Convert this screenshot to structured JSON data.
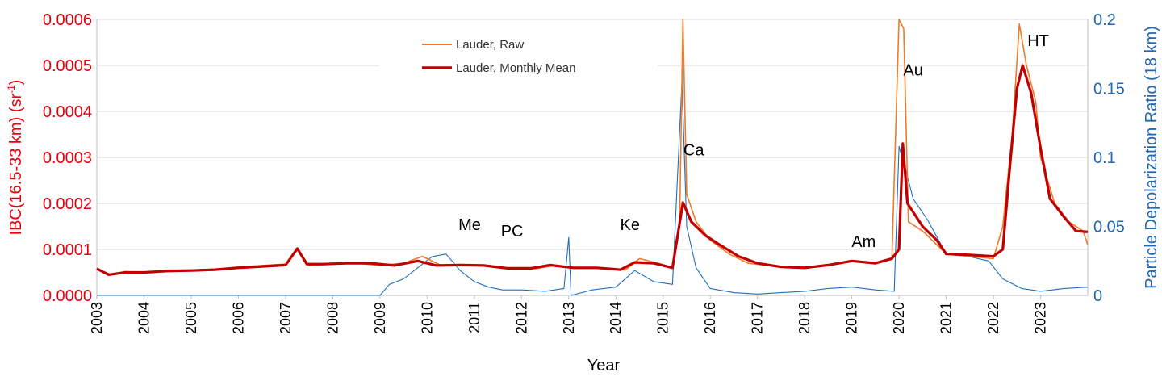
{
  "chart_data": {
    "type": "line",
    "xlabel": "Year",
    "ylabel_left": "IBC(16.5-33 km) (sr",
    "ylabel_left_sup": "-1",
    "ylabel_left_end": ")",
    "ylabel_right": "Particle Depolarization Ratio (18 km)",
    "xlim": [
      2003,
      2024
    ],
    "ylim_left": [
      0,
      0.0006
    ],
    "ylim_right": [
      0,
      0.2
    ],
    "x_tick_labels": [
      "2003",
      "2004",
      "2005",
      "2006",
      "2007",
      "2008",
      "2009",
      "2010",
      "2011",
      "2012",
      "2013",
      "2014",
      "2015",
      "2016",
      "2017",
      "2018",
      "2019",
      "2020",
      "2021",
      "2022",
      "2023"
    ],
    "y_left_tick_labels": [
      "0.0000",
      "0.0001",
      "0.0002",
      "0.0003",
      "0.0004",
      "0.0005",
      "0.0006"
    ],
    "y_right_tick_labels": [
      "0",
      "0.05",
      "0.1",
      "0.15",
      "0.2"
    ],
    "grid": "horizontal",
    "legend_position": "top-center",
    "colors": {
      "raw": "#f07a2a",
      "mean": "#c00000",
      "depol": "#1f6fc1",
      "left_axis": "#e8000d",
      "right_axis": "#1f66b3"
    },
    "annotations": [
      {
        "text": "Me",
        "x": 2010.9,
        "y": 0.000142
      },
      {
        "text": "PC",
        "x": 2011.8,
        "y": 0.000128
      },
      {
        "text": "Ke",
        "x": 2014.3,
        "y": 0.000142
      },
      {
        "text": "Ca",
        "x": 2015.65,
        "y": 0.000304
      },
      {
        "text": "Am",
        "x": 2019.25,
        "y": 0.000105
      },
      {
        "text": "Au",
        "x": 2020.3,
        "y": 0.000478
      },
      {
        "text": "HT",
        "x": 2022.95,
        "y": 0.000542
      }
    ],
    "series": [
      {
        "name": "Lauder, Raw",
        "axis": "left",
        "points": [
          [
            2003.0,
            5.8e-05
          ],
          [
            2003.3,
            4.5e-05
          ],
          [
            2003.6,
            5.2e-05
          ],
          [
            2004.0,
            5e-05
          ],
          [
            2004.5,
            5.5e-05
          ],
          [
            2005.0,
            5.5e-05
          ],
          [
            2005.5,
            5.7e-05
          ],
          [
            2006.0,
            6.2e-05
          ],
          [
            2006.5,
            6.5e-05
          ],
          [
            2007.0,
            6.8e-05
          ],
          [
            2007.25,
            0.000102
          ],
          [
            2007.5,
            6.5e-05
          ],
          [
            2008.0,
            6.8e-05
          ],
          [
            2008.5,
            7e-05
          ],
          [
            2009.0,
            6.5e-05
          ],
          [
            2009.5,
            7e-05
          ],
          [
            2009.9,
            8.5e-05
          ],
          [
            2010.3,
            6.5e-05
          ],
          [
            2010.8,
            6.5e-05
          ],
          [
            2011.3,
            6.5e-05
          ],
          [
            2011.8,
            5.8e-05
          ],
          [
            2012.3,
            5.8e-05
          ],
          [
            2012.7,
            6.5e-05
          ],
          [
            2013.2,
            6e-05
          ],
          [
            2013.7,
            6e-05
          ],
          [
            2014.2,
            5.5e-05
          ],
          [
            2014.5,
            8e-05
          ],
          [
            2014.9,
            7e-05
          ],
          [
            2015.2,
            6e-05
          ],
          [
            2015.35,
            0.00015
          ],
          [
            2015.42,
            0.0006
          ],
          [
            2015.5,
            0.00022
          ],
          [
            2015.7,
            0.00016
          ],
          [
            2016.0,
            0.00012
          ],
          [
            2016.4,
            9e-05
          ],
          [
            2016.8,
            7e-05
          ],
          [
            2017.2,
            6.5e-05
          ],
          [
            2017.6,
            6e-05
          ],
          [
            2018.0,
            6.2e-05
          ],
          [
            2018.5,
            6.5e-05
          ],
          [
            2019.0,
            7.5e-05
          ],
          [
            2019.5,
            7e-05
          ],
          [
            2019.85,
            8e-05
          ],
          [
            2020.0,
            0.0006
          ],
          [
            2020.1,
            0.00058
          ],
          [
            2020.2,
            0.00016
          ],
          [
            2020.5,
            0.00014
          ],
          [
            2020.8,
            0.00011
          ],
          [
            2021.0,
            9e-05
          ],
          [
            2021.5,
            8.5e-05
          ],
          [
            2022.0,
            8e-05
          ],
          [
            2022.2,
            0.00015
          ],
          [
            2022.4,
            0.00035
          ],
          [
            2022.55,
            0.00059
          ],
          [
            2022.7,
            0.0005
          ],
          [
            2022.9,
            0.00042
          ],
          [
            2023.0,
            0.0003
          ],
          [
            2023.3,
            0.0002
          ],
          [
            2023.6,
            0.00016
          ],
          [
            2023.9,
            0.00014
          ],
          [
            2024.0,
            0.00011
          ]
        ]
      },
      {
        "name": "Lauder, Monthly Mean",
        "axis": "left",
        "points": [
          [
            2003.0,
            5.8e-05
          ],
          [
            2003.25,
            4.5e-05
          ],
          [
            2003.6,
            5e-05
          ],
          [
            2004.0,
            5e-05
          ],
          [
            2004.5,
            5.3e-05
          ],
          [
            2005.0,
            5.4e-05
          ],
          [
            2005.5,
            5.6e-05
          ],
          [
            2006.0,
            6e-05
          ],
          [
            2006.5,
            6.3e-05
          ],
          [
            2007.0,
            6.6e-05
          ],
          [
            2007.25,
            0.000102
          ],
          [
            2007.45,
            6.8e-05
          ],
          [
            2007.8,
            6.8e-05
          ],
          [
            2008.3,
            7e-05
          ],
          [
            2008.8,
            7e-05
          ],
          [
            2009.3,
            6.5e-05
          ],
          [
            2009.8,
            7.5e-05
          ],
          [
            2010.2,
            6.5e-05
          ],
          [
            2010.7,
            6.6e-05
          ],
          [
            2011.2,
            6.5e-05
          ],
          [
            2011.7,
            5.9e-05
          ],
          [
            2012.2,
            5.9e-05
          ],
          [
            2012.6,
            6.6e-05
          ],
          [
            2013.1,
            6e-05
          ],
          [
            2013.6,
            6e-05
          ],
          [
            2014.1,
            5.6e-05
          ],
          [
            2014.4,
            7.2e-05
          ],
          [
            2014.8,
            7e-05
          ],
          [
            2015.2,
            6e-05
          ],
          [
            2015.42,
            0.000202
          ],
          [
            2015.6,
            0.00016
          ],
          [
            2015.9,
            0.00013
          ],
          [
            2016.2,
            0.00011
          ],
          [
            2016.6,
            8.5e-05
          ],
          [
            2017.0,
            7e-05
          ],
          [
            2017.5,
            6.2e-05
          ],
          [
            2018.0,
            6e-05
          ],
          [
            2018.5,
            6.6e-05
          ],
          [
            2019.0,
            7.5e-05
          ],
          [
            2019.5,
            7e-05
          ],
          [
            2019.85,
            8e-05
          ],
          [
            2020.0,
            0.0001
          ],
          [
            2020.08,
            0.00033
          ],
          [
            2020.18,
            0.0002
          ],
          [
            2020.5,
            0.00015
          ],
          [
            2020.8,
            0.00012
          ],
          [
            2021.0,
            9e-05
          ],
          [
            2021.5,
            8.8e-05
          ],
          [
            2022.0,
            8.5e-05
          ],
          [
            2022.2,
            0.0001
          ],
          [
            2022.35,
            0.00028
          ],
          [
            2022.5,
            0.00045
          ],
          [
            2022.62,
            0.0005
          ],
          [
            2022.8,
            0.00044
          ],
          [
            2023.0,
            0.00032
          ],
          [
            2023.2,
            0.00021
          ],
          [
            2023.5,
            0.00017
          ],
          [
            2023.75,
            0.00014
          ],
          [
            2024.0,
            0.000138
          ]
        ]
      },
      {
        "name": "",
        "axis": "right",
        "points": [
          [
            2003.0,
            0.0
          ],
          [
            2009.0,
            0.0
          ],
          [
            2009.2,
            0.008
          ],
          [
            2009.5,
            0.012
          ],
          [
            2009.8,
            0.02
          ],
          [
            2010.1,
            0.028
          ],
          [
            2010.4,
            0.03
          ],
          [
            2010.7,
            0.018
          ],
          [
            2011.0,
            0.01
          ],
          [
            2011.3,
            0.006
          ],
          [
            2011.6,
            0.004
          ],
          [
            2012.0,
            0.004
          ],
          [
            2012.5,
            0.003
          ],
          [
            2012.9,
            0.005
          ],
          [
            2013.0,
            0.042
          ],
          [
            2013.05,
            0.0
          ],
          [
            2013.5,
            0.004
          ],
          [
            2014.0,
            0.006
          ],
          [
            2014.4,
            0.018
          ],
          [
            2014.8,
            0.01
          ],
          [
            2015.2,
            0.008
          ],
          [
            2015.4,
            0.155
          ],
          [
            2015.5,
            0.05
          ],
          [
            2015.7,
            0.02
          ],
          [
            2016.0,
            0.005
          ],
          [
            2016.5,
            0.002
          ],
          [
            2017.0,
            0.001
          ],
          [
            2017.5,
            0.002
          ],
          [
            2018.0,
            0.003
          ],
          [
            2018.5,
            0.005
          ],
          [
            2019.0,
            0.006
          ],
          [
            2019.5,
            0.004
          ],
          [
            2019.9,
            0.003
          ],
          [
            2020.0,
            0.108
          ],
          [
            2020.15,
            0.09
          ],
          [
            2020.3,
            0.07
          ],
          [
            2020.6,
            0.055
          ],
          [
            2021.0,
            0.03
          ],
          [
            2021.5,
            0.028
          ],
          [
            2021.9,
            0.025
          ],
          [
            2022.2,
            0.012
          ],
          [
            2022.6,
            0.005
          ],
          [
            2023.0,
            0.003
          ],
          [
            2023.5,
            0.005
          ],
          [
            2024.0,
            0.006
          ]
        ]
      }
    ]
  }
}
